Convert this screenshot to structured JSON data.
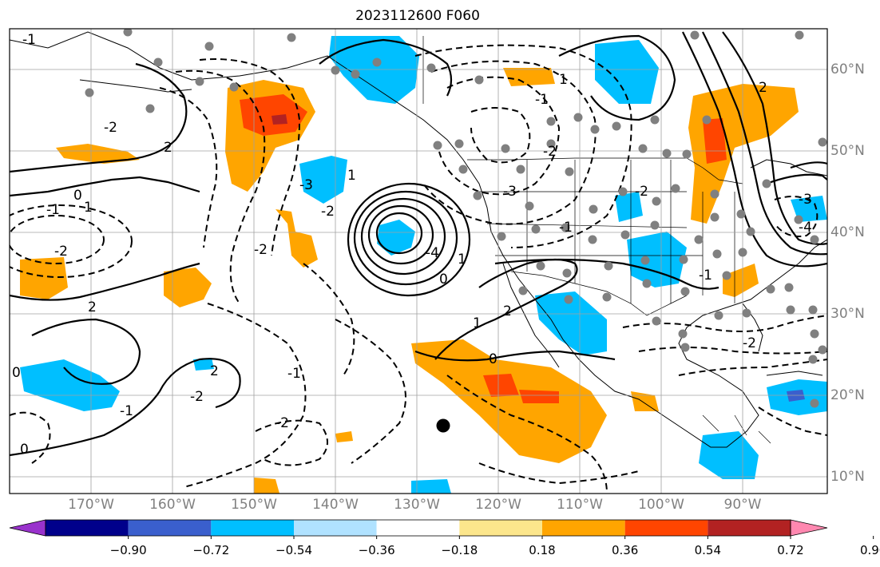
{
  "title": "2023112600 F060",
  "lon_labels": [
    "170°W",
    "160°W",
    "150°W",
    "140°W",
    "130°W",
    "120°W",
    "110°W",
    "100°W",
    "90°W"
  ],
  "lat_labels": [
    "60°N",
    "50°N",
    "40°N",
    "30°N",
    "20°N",
    "10°N"
  ],
  "contour_labels": [
    "-1",
    "-2",
    "0",
    "1",
    "2",
    "-3",
    "-4",
    "-2",
    "1",
    "0",
    "-1",
    "-2",
    "0",
    "-1",
    "-2",
    "2",
    "-1",
    "0",
    "1",
    "-2",
    "-3",
    "-1",
    "-2",
    "1",
    "2",
    "-1",
    "-2",
    "2",
    "-2",
    "-3",
    "-1",
    "-4",
    "1",
    "0",
    "-2",
    "2"
  ],
  "colorbar": {
    "ticks": [
      "−0.90",
      "−0.72",
      "−0.54",
      "−0.36",
      "−0.18",
      "0.18",
      "0.36",
      "0.54",
      "0.72",
      "0.90"
    ],
    "colors": [
      "#9932cc",
      "#00008b",
      "#3a5fcd",
      "#00bfff",
      "#b0e2ff",
      "#ffffff",
      "#fce68c",
      "#ffa500",
      "#ff4500",
      "#b22222",
      "#ff88b0"
    ]
  }
}
